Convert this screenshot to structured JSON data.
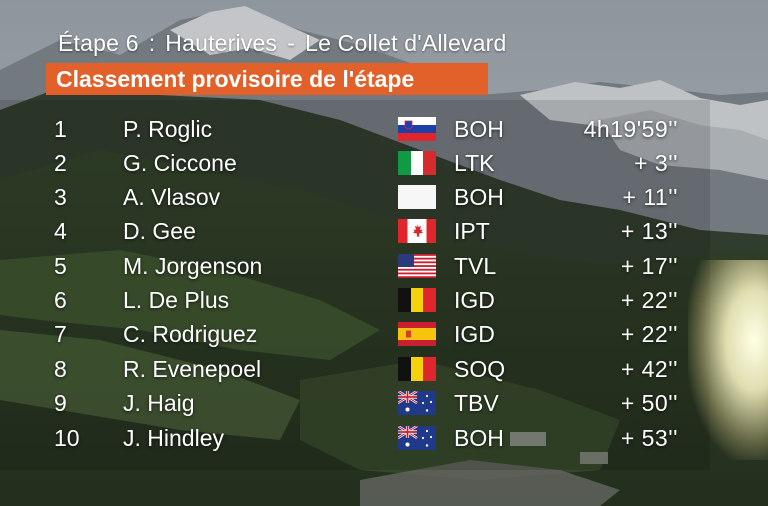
{
  "header": {
    "stage": "Étape 6",
    "start": "Hauterives",
    "separator": "-",
    "finish": "Le Collet d'Allevard",
    "banner": "Classement provisoire de l'étape"
  },
  "rows": [
    {
      "rank": "1",
      "name": "P. Roglic",
      "flag": "slovenia",
      "team": "BOH",
      "time": "4h19'59''"
    },
    {
      "rank": "2",
      "name": "G. Ciccone",
      "flag": "italy",
      "team": "LTK",
      "time": "+ 3''"
    },
    {
      "rank": "3",
      "name": "A. Vlasov",
      "flag": "blank",
      "team": "BOH",
      "time": "+ 11''"
    },
    {
      "rank": "4",
      "name": "D. Gee",
      "flag": "canada",
      "team": "IPT",
      "time": "+ 13''"
    },
    {
      "rank": "5",
      "name": "M. Jorgenson",
      "flag": "usa",
      "team": "TVL",
      "time": "+ 17''"
    },
    {
      "rank": "6",
      "name": "L. De Plus",
      "flag": "belgium",
      "team": "IGD",
      "time": "+ 22''"
    },
    {
      "rank": "7",
      "name": "C. Rodriguez",
      "flag": "spain",
      "team": "IGD",
      "time": "+ 22''"
    },
    {
      "rank": "8",
      "name": "R. Evenepoel",
      "flag": "belgium",
      "team": "SOQ",
      "time": "+ 42''"
    },
    {
      "rank": "9",
      "name": "J. Haig",
      "flag": "australia",
      "team": "TBV",
      "time": "+ 50''"
    },
    {
      "rank": "10",
      "name": "J. Hindley",
      "flag": "australia",
      "team": "BOH",
      "time": "+ 53''"
    }
  ],
  "colors": {
    "banner": "#e2602a",
    "text": "#ffffff"
  }
}
